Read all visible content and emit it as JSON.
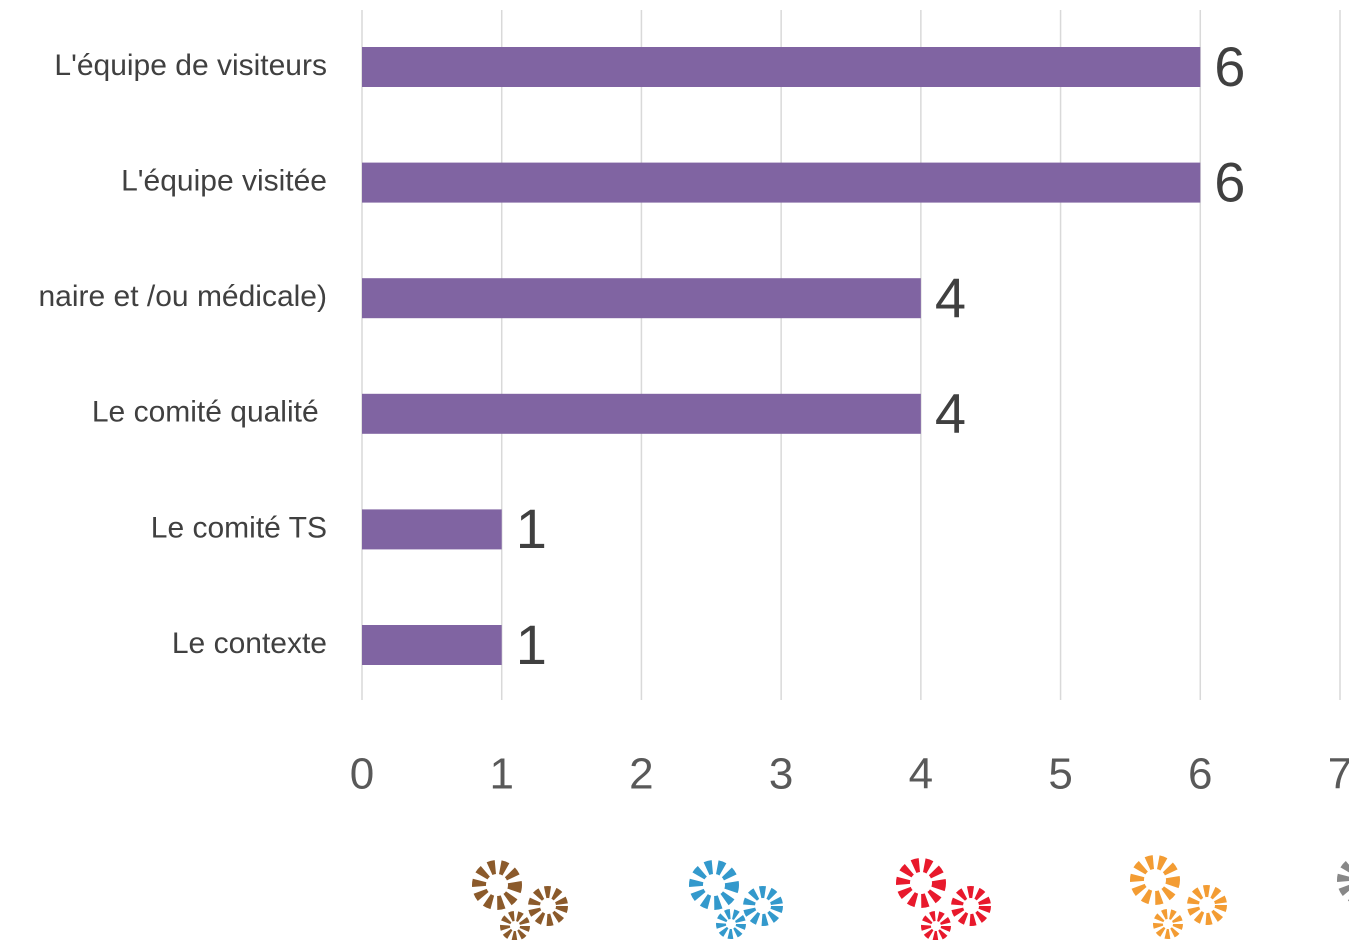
{
  "chart_data": {
    "type": "barh",
    "categories": [
      "L'équipe de visiteurs",
      "L'équipe visitée",
      "naire et /ou médicale)",
      "Le comité qualité ",
      "Le comité TS",
      "Le contexte"
    ],
    "values": [
      6,
      6,
      4,
      4,
      1,
      1
    ],
    "color": "#8064a2",
    "xlim": [
      0,
      7
    ],
    "xticks": [
      0,
      1,
      2,
      3,
      4,
      5,
      6,
      7
    ],
    "grid": true
  }
}
